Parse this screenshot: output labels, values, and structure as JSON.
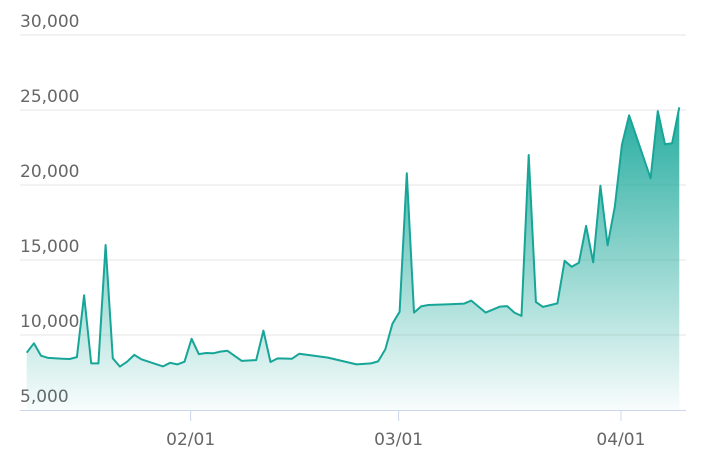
{
  "chart_data": {
    "type": "area",
    "title": "",
    "xlabel": "",
    "ylabel": "",
    "ylim": [
      5000,
      30000
    ],
    "yticks": [
      5000,
      10000,
      15000,
      20000,
      25000,
      30000
    ],
    "ytick_labels": [
      "5,000",
      "10,000",
      "15,000",
      "20,000",
      "25,000",
      "30,000"
    ],
    "xticks": [
      "02/01",
      "03/01",
      "04/01"
    ],
    "grid": true,
    "legend": "none",
    "colors": {
      "line": "#17a598",
      "fill_top": "#1aa89a",
      "grid": "#e6e6e6",
      "axis": "#ccd6eb",
      "label": "#666666"
    },
    "x": [
      "01/09",
      "01/10",
      "01/11",
      "01/12",
      "01/14",
      "01/15",
      "01/16",
      "01/17",
      "01/18",
      "01/19",
      "01/20",
      "01/21",
      "01/22",
      "01/23",
      "01/24",
      "01/25",
      "01/28",
      "01/29",
      "01/30",
      "01/31",
      "02/01",
      "02/02",
      "02/03",
      "02/04",
      "02/05",
      "02/06",
      "02/08",
      "02/10",
      "02/11",
      "02/12",
      "02/13",
      "02/15",
      "02/16",
      "02/20",
      "02/24",
      "02/26",
      "02/27",
      "02/28",
      "02/29",
      "03/01",
      "03/02",
      "03/03",
      "03/04",
      "03/05",
      "03/08",
      "03/10",
      "03/11",
      "03/13",
      "03/15",
      "03/16",
      "03/17",
      "03/18",
      "03/19",
      "03/20",
      "03/21",
      "03/23",
      "03/24",
      "03/25",
      "03/26",
      "03/27",
      "03/28",
      "03/29",
      "03/30",
      "03/31",
      "04/01",
      "04/02",
      "04/05",
      "04/06",
      "04/07",
      "04/08",
      "04/09"
    ],
    "values": [
      8820,
      9450,
      8620,
      8470,
      8420,
      8400,
      8530,
      12650,
      8110,
      8110,
      16000,
      8450,
      7890,
      8220,
      8670,
      8380,
      7910,
      8150,
      8040,
      8220,
      9750,
      8730,
      8800,
      8780,
      8890,
      8950,
      8270,
      8330,
      10290,
      8200,
      8440,
      8420,
      8750,
      8490,
      8040,
      8110,
      8240,
      9040,
      10750,
      11550,
      20780,
      11490,
      11910,
      12000,
      12050,
      12090,
      12290,
      11490,
      11890,
      11930,
      11490,
      11270,
      22000,
      12200,
      11870,
      12110,
      14950,
      14550,
      14820,
      17270,
      14850,
      19950,
      15980,
      18550,
      22670,
      24650,
      20450,
      24930,
      22710,
      22780,
      25180
    ]
  }
}
